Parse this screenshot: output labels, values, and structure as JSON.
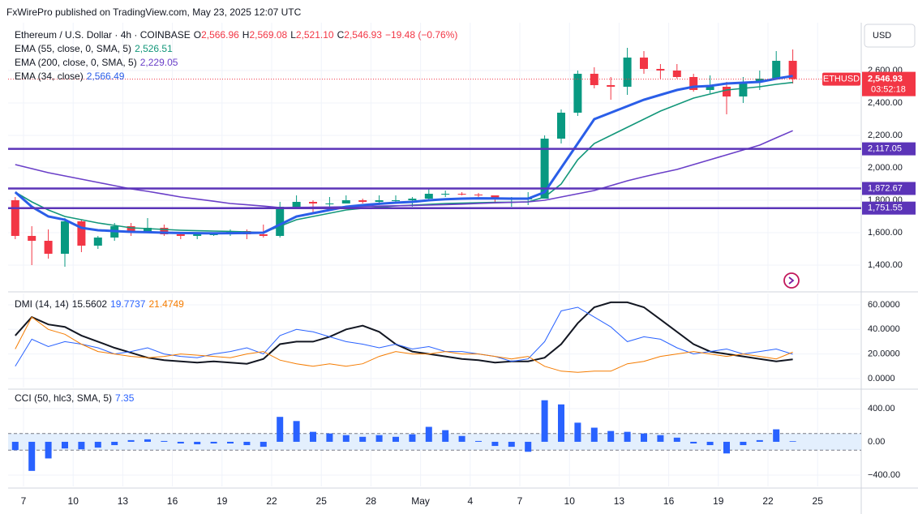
{
  "header": {
    "publisher": "FxWirePro published on TradingView.com, May 23, 2025 12:07 UTC",
    "currency": "USD"
  },
  "chart_data": [
    {
      "type": "candlestick",
      "title": "Ethereum / U.S. Dollar · 4h · COINBASE",
      "ohlc": [
        {
          "key": "O",
          "value": "2,566.96"
        },
        {
          "key": "H",
          "value": "2,569.08"
        },
        {
          "key": "L",
          "value": "2,521.10"
        },
        {
          "key": "C",
          "value": "2,546.93"
        }
      ],
      "change": "−19.48 (−0.76%)",
      "categories": [
        null,
        "7",
        null,
        null,
        "10",
        null,
        null,
        "13",
        null,
        null,
        "16",
        null,
        null,
        "19",
        null,
        null,
        "22",
        null,
        null,
        "25",
        null,
        null,
        "28",
        null,
        null,
        "May",
        null,
        null,
        "4",
        null,
        null,
        "7",
        null,
        null,
        "10",
        null,
        null,
        "13",
        null,
        null,
        "16",
        null,
        null,
        "19",
        null,
        null,
        "22",
        null,
        null,
        "25",
        null
      ],
      "open": [
        1800,
        1580,
        1550,
        1470,
        1670,
        1520,
        1570,
        1640,
        1600,
        1630,
        1590,
        1580,
        1590,
        1590,
        1610,
        1590,
        1580,
        1760,
        1790,
        1780,
        1780,
        1800,
        1790,
        1800,
        1800,
        1810,
        1840,
        1840,
        1835,
        1830,
        1810,
        1810,
        1810,
        2180,
        2340,
        2580,
        2510,
        2500,
        2680,
        2610,
        2600,
        2560,
        2480,
        2500,
        2440,
        2530,
        2550,
        2660,
        null,
        null,
        null
      ],
      "high": [
        1820,
        1640,
        1620,
        1690,
        1680,
        1580,
        1660,
        1660,
        1690,
        1650,
        1600,
        1600,
        1600,
        1620,
        1620,
        1650,
        1790,
        1830,
        1800,
        1820,
        1830,
        1810,
        1830,
        1830,
        1820,
        1870,
        1860,
        1850,
        1845,
        1830,
        1820,
        1850,
        2200,
        2360,
        2600,
        2620,
        2560,
        2740,
        2720,
        2640,
        2640,
        2580,
        2570,
        2530,
        2560,
        2600,
        2720,
        2730,
        null,
        null,
        null
      ],
      "low": [
        1560,
        1400,
        1440,
        1390,
        1480,
        1500,
        1550,
        1580,
        1600,
        1580,
        1560,
        1560,
        1580,
        1580,
        1560,
        1570,
        1570,
        1760,
        1720,
        1760,
        1780,
        1780,
        1770,
        1780,
        1760,
        1800,
        1820,
        1830,
        1820,
        1780,
        1760,
        1770,
        1810,
        2150,
        2320,
        2490,
        2420,
        2450,
        2580,
        2550,
        2550,
        2470,
        2460,
        2330,
        2400,
        2480,
        2550,
        2520,
        null,
        null,
        null
      ],
      "close": [
        1580,
        1550,
        1470,
        1670,
        1520,
        1570,
        1640,
        1600,
        1630,
        1590,
        1580,
        1590,
        1590,
        1610,
        1590,
        1580,
        1760,
        1790,
        1780,
        1780,
        1800,
        1790,
        1800,
        1800,
        1810,
        1840,
        1840,
        1835,
        1830,
        1810,
        1810,
        1810,
        2180,
        2340,
        2580,
        2510,
        2500,
        2680,
        2610,
        2600,
        2560,
        2480,
        2500,
        2440,
        2530,
        2550,
        2660,
        2546.93,
        null,
        null,
        null
      ],
      "up_color": "#089981",
      "down_color": "#f23645",
      "overlays": [
        {
          "name": "EMA (55, close, 0, SMA, 5)",
          "value_label": "2,526.51",
          "color": "#13977a",
          "width": 1.6,
          "values": [
            1850,
            1790,
            1740,
            1700,
            1680,
            1660,
            1645,
            1630,
            1625,
            1620,
            1615,
            1612,
            1610,
            1608,
            1605,
            1600,
            1640,
            1680,
            1700,
            1720,
            1740,
            1750,
            1758,
            1765,
            1770,
            1775,
            1780,
            1782,
            1785,
            1787,
            1788,
            1790,
            1820,
            1900,
            2050,
            2150,
            2200,
            2250,
            2300,
            2350,
            2390,
            2430,
            2455,
            2480,
            2490,
            2500,
            2515,
            2526.51,
            null,
            null,
            null
          ]
        },
        {
          "name": "EMA (200, close, 0, SMA, 5)",
          "value_label": "2,229.05",
          "color": "#6a3fc8",
          "width": 1.6,
          "values": [
            2020,
            1995,
            1970,
            1950,
            1930,
            1910,
            1890,
            1870,
            1855,
            1838,
            1820,
            1807,
            1794,
            1780,
            1772,
            1764,
            1755,
            1756,
            1757,
            1758,
            1760,
            1762,
            1764,
            1766,
            1768,
            1770,
            1773,
            1776,
            1780,
            1784,
            1787,
            1790,
            1800,
            1820,
            1840,
            1860,
            1890,
            1920,
            1945,
            1968,
            1990,
            2020,
            2050,
            2080,
            2110,
            2140,
            2185,
            2229.05,
            null,
            null,
            null
          ]
        },
        {
          "name": "EMA (34, close)",
          "value_label": "2,566.49",
          "color": "#2a5ee8",
          "width": 3,
          "values": [
            1850,
            1760,
            1700,
            1680,
            1630,
            1615,
            1610,
            1605,
            1603,
            1600,
            1598,
            1597,
            1596,
            1597,
            1598,
            1600,
            1650,
            1700,
            1720,
            1740,
            1760,
            1770,
            1778,
            1785,
            1790,
            1800,
            1806,
            1810,
            1812,
            1811,
            1810,
            1810,
            1850,
            2000,
            2150,
            2300,
            2340,
            2380,
            2420,
            2450,
            2480,
            2500,
            2505,
            2520,
            2525,
            2530,
            2550,
            2566.49,
            null,
            null,
            null
          ]
        }
      ],
      "levels": [
        {
          "value": 2117.05,
          "label": "2,117.05"
        },
        {
          "value": 1872.67,
          "label": "1,872.67"
        },
        {
          "value": 1751.55,
          "label": "1,751.55"
        }
      ],
      "level_color": "#5b34b8",
      "last_price": {
        "value": 2546.93,
        "label": "2,546.93",
        "countdown": "03:52:18",
        "symbol": "ETHUSD",
        "color": "#f23645"
      },
      "ylim": [
        1245,
        2895
      ],
      "yticks": [
        {
          "value": 1400,
          "label": "1,400.00"
        },
        {
          "value": 1600,
          "label": "1,600.00"
        },
        {
          "value": 1800,
          "label": "1,800.00"
        },
        {
          "value": 2000,
          "label": "2,000.00"
        },
        {
          "value": 2200,
          "label": "2,200.00"
        },
        {
          "value": 2400,
          "label": "2,400.00"
        },
        {
          "value": 2600,
          "label": "2,600.00"
        }
      ],
      "grid": true
    },
    {
      "type": "line",
      "title": "DMI (14, 14)",
      "series": [
        {
          "color": "#131722",
          "width": 2,
          "value_label": "15.5602",
          "values": [
            35,
            50,
            44,
            42,
            35,
            30,
            25,
            21,
            17,
            15,
            14,
            13,
            14,
            13,
            12,
            16,
            28,
            30,
            30,
            34,
            40,
            43,
            38,
            28,
            22,
            20,
            18,
            16,
            15,
            13,
            14,
            14,
            17,
            28,
            45,
            58,
            62,
            62,
            58,
            48,
            38,
            28,
            22,
            20,
            18,
            16,
            14,
            15.5602,
            null,
            null,
            null
          ]
        },
        {
          "color": "#2962ff",
          "width": 1,
          "value_label": "19.7737",
          "values": [
            10,
            32,
            26,
            30,
            28,
            25,
            20,
            22,
            25,
            20,
            18,
            17,
            20,
            22,
            25,
            20,
            35,
            40,
            38,
            34,
            30,
            28,
            25,
            28,
            24,
            26,
            22,
            22,
            20,
            18,
            14,
            16,
            30,
            55,
            58,
            50,
            42,
            30,
            34,
            32,
            25,
            20,
            22,
            24,
            20,
            22,
            24,
            19.7737,
            null,
            null,
            null
          ]
        },
        {
          "color": "#f57c00",
          "width": 1,
          "value_label": "21.4749",
          "values": [
            24,
            50,
            40,
            36,
            28,
            22,
            20,
            18,
            17,
            18,
            20,
            19,
            18,
            17,
            20,
            22,
            15,
            12,
            10,
            12,
            10,
            12,
            18,
            22,
            20,
            20,
            22,
            20,
            20,
            18,
            16,
            18,
            10,
            6,
            5,
            6,
            6,
            12,
            14,
            18,
            20,
            22,
            20,
            18,
            20,
            18,
            16,
            21.4749,
            null,
            null,
            null
          ]
        }
      ],
      "ylim": [
        -7.3,
        69.2
      ],
      "yticks": [
        {
          "value": 0,
          "label": "0.0000"
        },
        {
          "value": 20,
          "label": "20.0000"
        },
        {
          "value": 40,
          "label": "40.0000"
        },
        {
          "value": 60,
          "label": "60.0000"
        }
      ],
      "grid": true
    },
    {
      "type": "bar",
      "title": "CCI (50, hlc3, SMA, 5)",
      "value_label": "7.35",
      "color": "#2962ff",
      "values": [
        -100,
        -350,
        -200,
        -80,
        -90,
        -70,
        -40,
        20,
        30,
        10,
        -20,
        -30,
        -20,
        -20,
        -40,
        -60,
        300,
        250,
        120,
        100,
        80,
        60,
        80,
        60,
        90,
        180,
        140,
        70,
        10,
        -50,
        -60,
        -120,
        500,
        450,
        230,
        170,
        130,
        120,
        100,
        80,
        50,
        -20,
        -40,
        -140,
        -40,
        20,
        150,
        7.35,
        null,
        null,
        null
      ],
      "band": [
        -100,
        100
      ],
      "band_color": "#e3effd",
      "ylim": [
        -537,
        614
      ],
      "yticks": [
        {
          "value": 400,
          "label": "400.00"
        },
        {
          "value": 0,
          "label": "0.00"
        },
        {
          "value": -400,
          "label": "−400.00"
        }
      ],
      "grid": true
    }
  ]
}
